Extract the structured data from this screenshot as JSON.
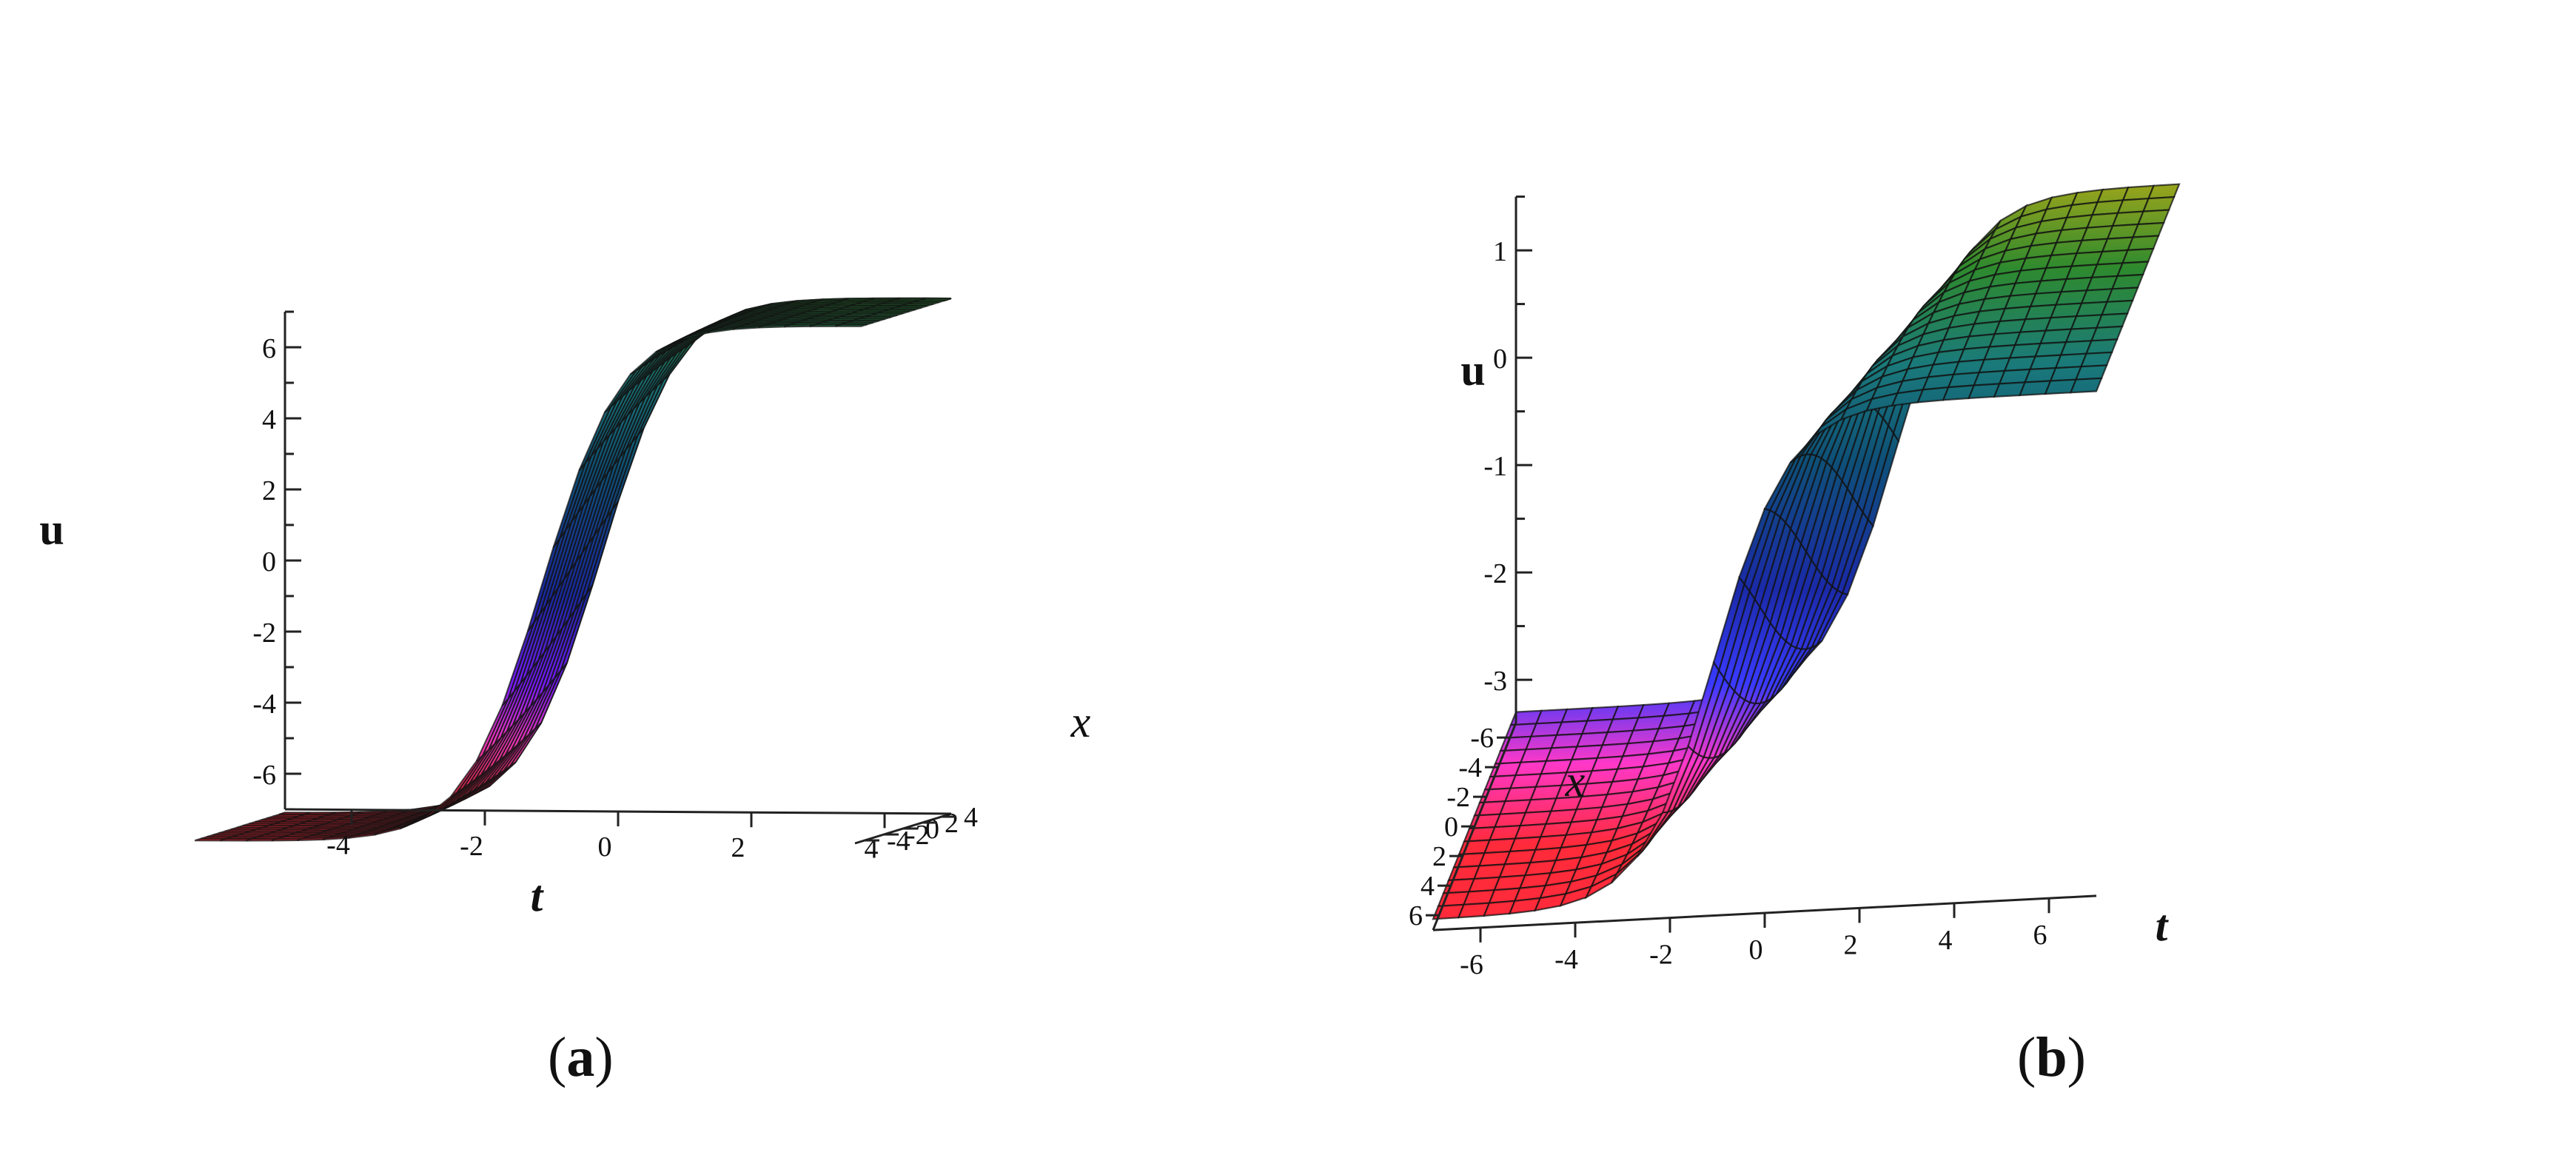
{
  "chart_data": [
    {
      "type": "surface3d",
      "panel_label": "a",
      "xlabel": "t",
      "ylabel": "x",
      "zlabel": "u",
      "t_ticks": [
        "-4",
        "-2",
        "0",
        "2",
        "4"
      ],
      "x_ticks": [
        "-4",
        "-2",
        "0",
        "2",
        "4"
      ],
      "u_ticks": [
        "6",
        "4",
        "2",
        "0",
        "-2",
        "-4",
        "-6"
      ],
      "t_range": [
        -5,
        5
      ],
      "x_range": [
        -5,
        5
      ],
      "u_range": [
        -7,
        7
      ],
      "surface": "kink: u ≈ -7 at t = -5, rising to u ≈ 7 at t = 5",
      "colormap": "rainbow (z-hue), black mesh lines",
      "grid": false
    },
    {
      "type": "surface3d",
      "panel_label": "b",
      "xlabel": "t",
      "ylabel": "x",
      "zlabel": "u",
      "t_ticks": [
        "-6",
        "-4",
        "-2",
        "0",
        "2",
        "4",
        "6"
      ],
      "x_ticks": [
        "-6",
        "-4",
        "-2",
        "0",
        "2",
        "4",
        "6"
      ],
      "u_ticks": [
        "1",
        "0",
        "-1",
        "-2",
        "-3"
      ],
      "t_range": [
        -7,
        7
      ],
      "x_range": [
        -7,
        7
      ],
      "u_range": [
        -3.4,
        1.5
      ],
      "surface": "kink: u ≈ -3.2 at t = -7, rising to u ≈ 1.3 at t = 7",
      "colormap": "rainbow (z-hue), black mesh lines",
      "grid": false
    }
  ],
  "captions": {
    "a": {
      "open": "(",
      "label": "a",
      "close": ")"
    },
    "b": {
      "open": "(",
      "label": "b",
      "close": ")"
    }
  }
}
